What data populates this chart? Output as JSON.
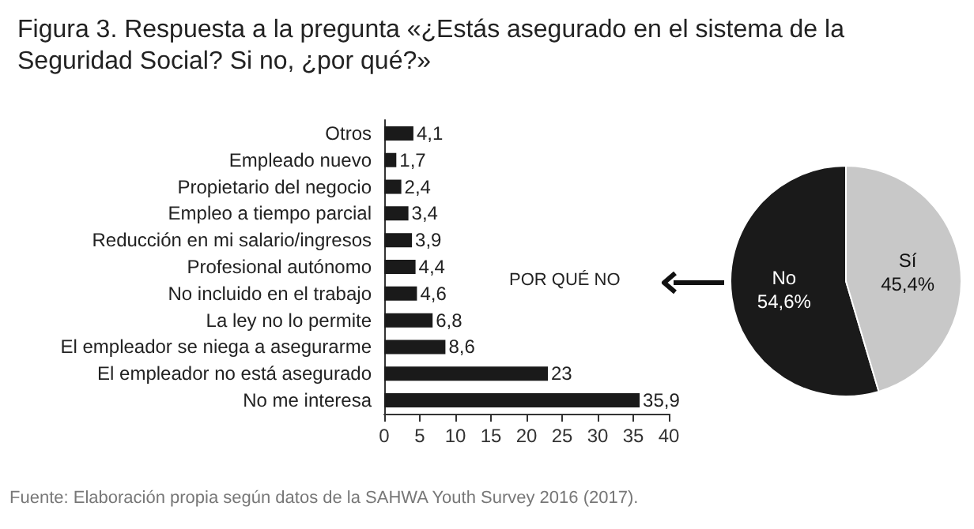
{
  "chart_data": [
    {
      "type": "bar",
      "orientation": "horizontal",
      "title": "Figura 3. Respuesta a la pregunta «¿Estás asegurado en el sistema de la\nSeguridad Social? Si no, ¿por qué?»",
      "categories": [
        "Otros",
        "Empleado nuevo",
        "Propietario del negocio",
        "Empleo a tiempo parcial",
        "Reducción en mi salario/ingresos",
        "Profesional autónomo",
        "No incluido en el trabajo",
        "La ley no lo permite",
        "El empleador se niega a asegurarme",
        "El empleador no está asegurado",
        "No me interesa"
      ],
      "values": [
        4.1,
        1.7,
        2.4,
        3.4,
        3.9,
        4.4,
        4.6,
        6.8,
        8.6,
        23,
        35.9
      ],
      "value_labels": [
        "4,1",
        "1,7",
        "2,4",
        "3,4",
        "3,9",
        "4,4",
        "4,6",
        "6,8",
        "8,6",
        "23",
        "35,9"
      ],
      "color": "#1a1a1a",
      "xlim": [
        0,
        40
      ],
      "xticks": [
        0,
        5,
        10,
        15,
        20,
        25,
        30,
        35,
        40
      ],
      "grid": false,
      "legend": false,
      "annotations": [
        "Fuente: Elaboración propia según datos de la SAHWA Youth Survey 2016 (2017)."
      ]
    },
    {
      "type": "pie",
      "categories": [
        "No",
        "Sí"
      ],
      "values": [
        54.6,
        45.4
      ],
      "value_labels": [
        "54,6%",
        "45,4%"
      ],
      "colors": [
        "#1a1a1a",
        "#c8c8c8"
      ],
      "legend": false,
      "annotations": [
        "POR QUÉ NO"
      ]
    }
  ]
}
